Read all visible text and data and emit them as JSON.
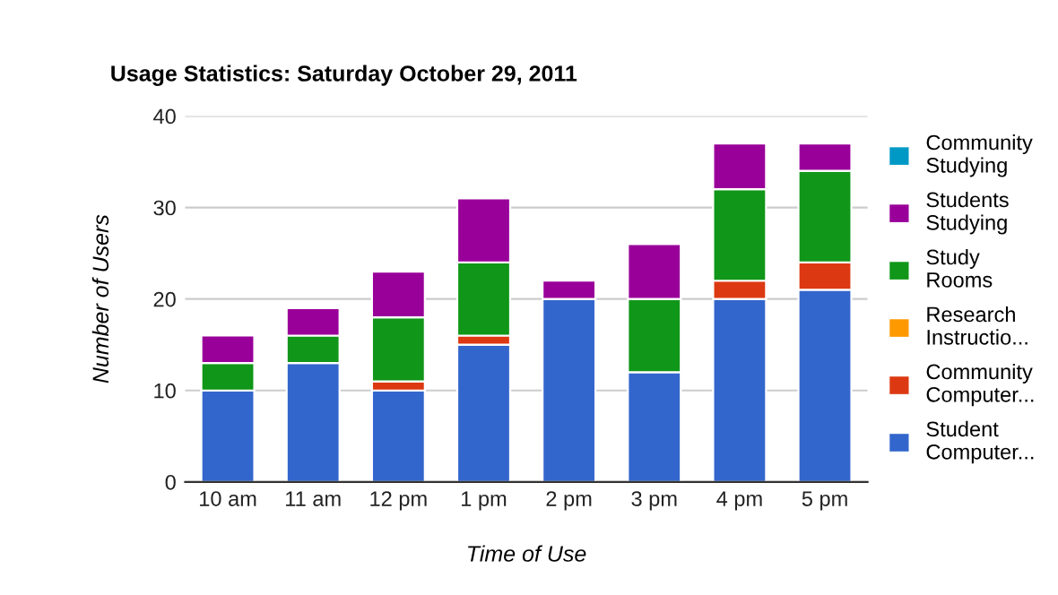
{
  "chart_data": {
    "type": "bar",
    "title": "Usage Statistics: Saturday October 29, 2011",
    "xlabel": "Time of Use",
    "ylabel": "Number of Users",
    "categories": [
      "10 am",
      "11 am",
      "12 pm",
      "1 pm",
      "2 pm",
      "3 pm",
      "4 pm",
      "5 pm"
    ],
    "stacked": true,
    "ylim": [
      0,
      40
    ],
    "yticks": [
      0,
      10,
      20,
      30,
      40
    ],
    "grid": "y",
    "legend": "right",
    "series": [
      {
        "name": "Student Computer...",
        "color": "#3366cc",
        "values": [
          10,
          13,
          10,
          15,
          20,
          12,
          20,
          21
        ]
      },
      {
        "name": "Community Computer...",
        "color": "#dc3912",
        "values": [
          0,
          0,
          1,
          1,
          0,
          0,
          2,
          3
        ]
      },
      {
        "name": "Research Instructio...",
        "color": "#ff9900",
        "values": [
          0,
          0,
          0,
          0,
          0,
          0,
          0,
          0
        ]
      },
      {
        "name": "Study Rooms",
        "color": "#109618",
        "values": [
          3,
          3,
          7,
          8,
          0,
          8,
          10,
          10
        ]
      },
      {
        "name": "Students Studying",
        "color": "#990099",
        "values": [
          3,
          3,
          5,
          7,
          2,
          6,
          5,
          3
        ]
      },
      {
        "name": "Community Studying",
        "color": "#0099c6",
        "values": [
          0,
          0,
          0,
          0,
          0,
          0,
          0,
          0
        ]
      }
    ]
  }
}
